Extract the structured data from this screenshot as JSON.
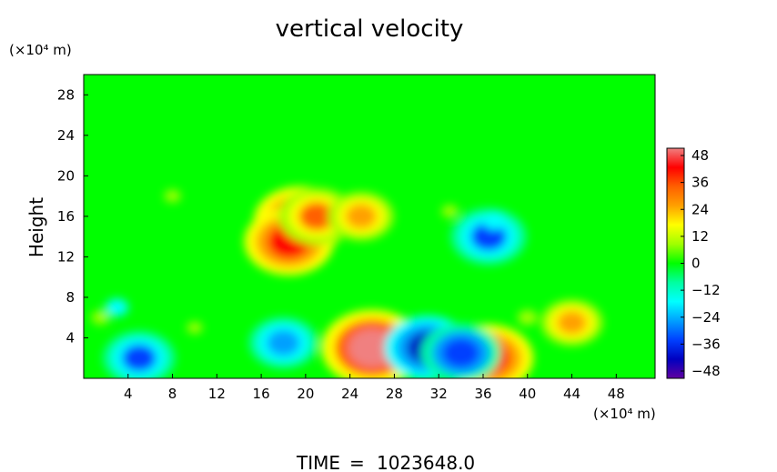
{
  "chart_data": {
    "type": "heatmap",
    "title": "vertical velocity",
    "ylabel": "Height",
    "y_unit": "(×10⁴ m)",
    "x_unit": "(×10⁴ m)",
    "xlim": [
      0,
      51.5
    ],
    "ylim": [
      0,
      30
    ],
    "x_ticks": [
      "4",
      "8",
      "12",
      "16",
      "20",
      "24",
      "28",
      "32",
      "36",
      "40",
      "44",
      "48"
    ],
    "y_ticks": [
      "4",
      "8",
      "12",
      "16",
      "20",
      "24",
      "28"
    ],
    "colorbar": {
      "range": [
        -48,
        48
      ],
      "tick_labels": [
        "48",
        "36",
        "24",
        "12",
        "0",
        "−12",
        "−24",
        "−36",
        "−48"
      ],
      "colors": [
        "#f08080",
        "#ff0000",
        "#ff6000",
        "#ffa000",
        "#ffff00",
        "#a0ff00",
        "#00ff00",
        "#00ffa0",
        "#00ffff",
        "#00a0ff",
        "#0040ff",
        "#0000c0",
        "#6000a0"
      ]
    },
    "features": [
      {
        "x": 26,
        "y": 3,
        "value": 45
      },
      {
        "x": 36.5,
        "y": 2,
        "value": 38
      },
      {
        "x": 18,
        "y": 3.5,
        "value": -26
      },
      {
        "x": 31,
        "y": 3,
        "value": -36
      },
      {
        "x": 34,
        "y": 2.5,
        "value": -32
      },
      {
        "x": 5,
        "y": 2,
        "value": -28
      },
      {
        "x": 44,
        "y": 5.5,
        "value": 22
      },
      {
        "x": 40,
        "y": 6,
        "value": 10
      },
      {
        "x": 19.5,
        "y": 15.5,
        "value": 40
      },
      {
        "x": 18.5,
        "y": 13.5,
        "value": 38
      },
      {
        "x": 21,
        "y": 16,
        "value": 30
      },
      {
        "x": 25,
        "y": 16,
        "value": 24
      },
      {
        "x": 36.5,
        "y": 14,
        "value": -30
      },
      {
        "x": 37,
        "y": 15.5,
        "value": -12
      },
      {
        "x": 33,
        "y": 16.5,
        "value": 6
      },
      {
        "x": 8,
        "y": 18,
        "value": 6
      },
      {
        "x": 1.5,
        "y": 6,
        "value": 8
      },
      {
        "x": 10,
        "y": 5,
        "value": 5
      },
      {
        "x": 3,
        "y": 7,
        "value": -14
      }
    ]
  },
  "footer": {
    "time_label": "TIME",
    "eq": "=",
    "time_value": "1023648.0"
  }
}
